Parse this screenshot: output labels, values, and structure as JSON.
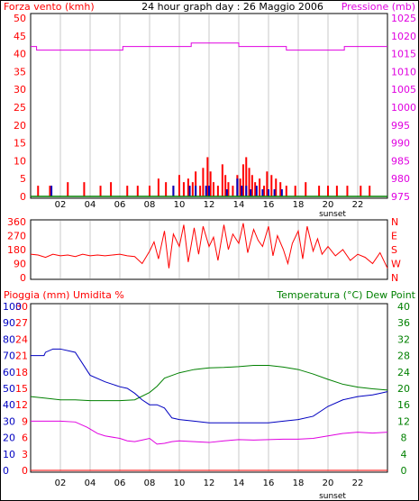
{
  "header": {
    "left_label": "Forza vento (kmh)",
    "title": "24 hour graph day : 26 Maggio 2006",
    "right_label": "Pressione (mb)"
  },
  "colors": {
    "wind": "#ff0000",
    "gust": "#0000c0",
    "pressure": "#e000e0",
    "humidity": "#0000c0",
    "temperature": "#008000",
    "dewpoint": "#e000e0",
    "rain": "#ff0000",
    "grid": "#c8c8c8"
  },
  "x_ticks": [
    "02",
    "04",
    "06",
    "08",
    "10",
    "12",
    "14",
    "16",
    "18",
    "20",
    "22"
  ],
  "sunset_label": "sunset",
  "chart_data": [
    {
      "type": "bar",
      "title": "24 hour graph day : 26 Maggio 2006",
      "ylabel_left": "Forza vento (kmh)",
      "ylabel_right": "Pressione (mb)",
      "xlim": [
        0,
        24
      ],
      "ylim_left": [
        0,
        50
      ],
      "ylim_right": [
        975,
        1025
      ],
      "y_ticks_left": [
        "0",
        "5",
        "10",
        "15",
        "20",
        "25",
        "30",
        "35",
        "40",
        "45",
        "50"
      ],
      "y_ticks_right": [
        "975",
        "980",
        "985",
        "990",
        "995",
        "1000",
        "1005",
        "1010",
        "1015",
        "1020",
        "1025"
      ],
      "series": [
        {
          "name": "wind",
          "kind": "bars",
          "x": [
            0.5,
            1.3,
            2.5,
            3.6,
            4.7,
            5.4,
            6.5,
            7.2,
            8.0,
            8.6,
            9.1,
            9.6,
            10.0,
            10.3,
            10.6,
            10.9,
            11.1,
            11.4,
            11.6,
            11.9,
            12.1,
            12.3,
            12.6,
            12.9,
            13.1,
            13.3,
            13.6,
            13.9,
            14.1,
            14.3,
            14.5,
            14.7,
            14.9,
            15.1,
            15.4,
            15.7,
            15.9,
            16.2,
            16.5,
            16.8,
            17.2,
            17.8,
            18.5,
            19.4,
            20.0,
            20.6,
            21.3,
            22.2,
            22.8
          ],
          "values": [
            3,
            3,
            4,
            4,
            3,
            4,
            3,
            3,
            3,
            5,
            4,
            3,
            6,
            4,
            5,
            4,
            7,
            3,
            8,
            11,
            7,
            4,
            3,
            9,
            6,
            4,
            3,
            6,
            5,
            9,
            11,
            8,
            6,
            4,
            5,
            3,
            7,
            6,
            5,
            4,
            3,
            3,
            4,
            3,
            3,
            3,
            3,
            3,
            3
          ]
        },
        {
          "name": "gust",
          "kind": "bars",
          "x": [
            1.4,
            9.6,
            10.7,
            11.1,
            11.8,
            12.0,
            13.2,
            13.9,
            14.2,
            14.5,
            14.8,
            15.2,
            15.6,
            16.0,
            16.4,
            16.9
          ],
          "values": [
            3,
            3,
            3,
            3,
            3,
            3,
            2,
            5,
            3,
            3,
            2,
            3,
            2,
            2,
            2,
            2
          ]
        },
        {
          "name": "pressure",
          "kind": "step-line",
          "axis": "right",
          "x": [
            0,
            0.4,
            6.2,
            10.8,
            14.0,
            17.2,
            20.3,
            21.1,
            24
          ],
          "values": [
            1017,
            1016,
            1017,
            1018,
            1017,
            1016,
            1016,
            1017,
            1017
          ]
        }
      ]
    },
    {
      "type": "line",
      "ylabel_right": "N W S E N",
      "xlim": [
        0,
        24
      ],
      "ylim": [
        0,
        360
      ],
      "y_ticks_left": [
        "0",
        "90",
        "180",
        "270",
        "360"
      ],
      "compass_labels": [
        "N",
        "W",
        "S",
        "E",
        "N"
      ],
      "series": [
        {
          "name": "wind direction",
          "x": [
            0,
            0.5,
            1.0,
            1.5,
            2.0,
            2.5,
            3.0,
            3.5,
            4.0,
            4.5,
            5.0,
            5.5,
            6.0,
            6.5,
            7.0,
            7.5,
            8.0,
            8.3,
            8.6,
            9.0,
            9.3,
            9.6,
            10.0,
            10.3,
            10.6,
            11.0,
            11.3,
            11.6,
            12.0,
            12.3,
            12.6,
            13.0,
            13.3,
            13.6,
            14.0,
            14.3,
            14.6,
            15.0,
            15.3,
            15.6,
            16.0,
            16.3,
            16.6,
            17.0,
            17.3,
            17.6,
            18.0,
            18.3,
            18.6,
            19.0,
            19.3,
            19.6,
            20.0,
            20.5,
            21.0,
            21.5,
            22.0,
            22.5,
            23.0,
            23.5,
            24.0
          ],
          "values": [
            150,
            145,
            130,
            150,
            140,
            145,
            135,
            150,
            140,
            145,
            140,
            145,
            150,
            140,
            135,
            90,
            170,
            230,
            120,
            300,
            60,
            280,
            200,
            340,
            100,
            320,
            150,
            330,
            200,
            260,
            110,
            340,
            180,
            280,
            220,
            350,
            160,
            310,
            240,
            200,
            330,
            140,
            270,
            180,
            90,
            220,
            300,
            120,
            330,
            170,
            250,
            150,
            200,
            140,
            180,
            110,
            150,
            130,
            90,
            160,
            60
          ]
        }
      ]
    },
    {
      "type": "line",
      "ylabel_left": "Pioggia (mm)  Umidita %",
      "ylabel_right": "Temperatura (°C) Dew Point",
      "xlim": [
        0,
        24
      ],
      "ylim_humidity": [
        0,
        100
      ],
      "ylim_rain": [
        0,
        30
      ],
      "ylim_temperature": [
        0,
        40
      ],
      "y_ticks_rain": [
        "0",
        "3",
        "6",
        "9",
        "12",
        "15",
        "18",
        "21",
        "24",
        "27",
        "30"
      ],
      "y_ticks_humidity": [
        "0",
        "10",
        "20",
        "30",
        "40",
        "50",
        "60",
        "70",
        "80",
        "90",
        "100"
      ],
      "y_ticks_temperature": [
        "0",
        "4",
        "8",
        "12",
        "16",
        "20",
        "24",
        "28",
        "32",
        "36",
        "40"
      ],
      "series": [
        {
          "name": "humidity",
          "x": [
            0,
            0.9,
            1.0,
            1.5,
            2.0,
            3.0,
            3.5,
            4.0,
            5.0,
            6.0,
            6.5,
            7.0,
            7.5,
            8.0,
            8.5,
            9.0,
            9.5,
            10.0,
            11.0,
            12.0,
            13.0,
            14.0,
            15.0,
            16.0,
            17.0,
            18.0,
            19.0,
            20.0,
            21.0,
            22.0,
            23.0,
            23.5,
            24.0
          ],
          "values": [
            70,
            70,
            72,
            74,
            74,
            72,
            65,
            58,
            54,
            51,
            50,
            47,
            43,
            40,
            40,
            38,
            32,
            31,
            30,
            29,
            29,
            29,
            29,
            29,
            30,
            31,
            33,
            39,
            43,
            45,
            46,
            47,
            48
          ]
        },
        {
          "name": "temperature",
          "x": [
            0,
            1,
            2,
            3,
            4,
            5,
            6,
            7,
            8,
            8.5,
            9,
            10,
            11,
            12,
            13,
            14,
            15,
            16,
            17,
            18,
            19,
            20,
            21,
            22,
            23,
            24
          ],
          "values": [
            18,
            17.6,
            17.2,
            17.2,
            17.0,
            17.0,
            17.0,
            17.2,
            19,
            20.5,
            22.5,
            23.8,
            24.6,
            25.0,
            25.1,
            25.3,
            25.6,
            25.6,
            25.2,
            24.6,
            23.5,
            22.2,
            21.0,
            20.3,
            19.9,
            19.6
          ]
        },
        {
          "name": "dew point",
          "x": [
            0,
            1,
            2,
            3,
            3.8,
            4.5,
            5,
            6,
            6.5,
            7,
            7.5,
            8,
            8.5,
            9,
            9.5,
            10,
            11,
            12,
            13,
            14,
            15,
            16,
            17,
            18,
            19,
            20,
            21,
            22,
            23,
            24
          ],
          "values": [
            12,
            12,
            12,
            11.8,
            10.5,
            9,
            8.4,
            7.8,
            7.2,
            7.0,
            7.4,
            7.8,
            6.4,
            6.6,
            7.0,
            7.2,
            7.0,
            6.8,
            7.2,
            7.5,
            7.4,
            7.5,
            7.6,
            7.6,
            7.8,
            8.4,
            9.0,
            9.3,
            9.1,
            9.3
          ]
        },
        {
          "name": "rain",
          "x": [
            0,
            24
          ],
          "values": [
            0,
            0
          ]
        }
      ]
    }
  ]
}
